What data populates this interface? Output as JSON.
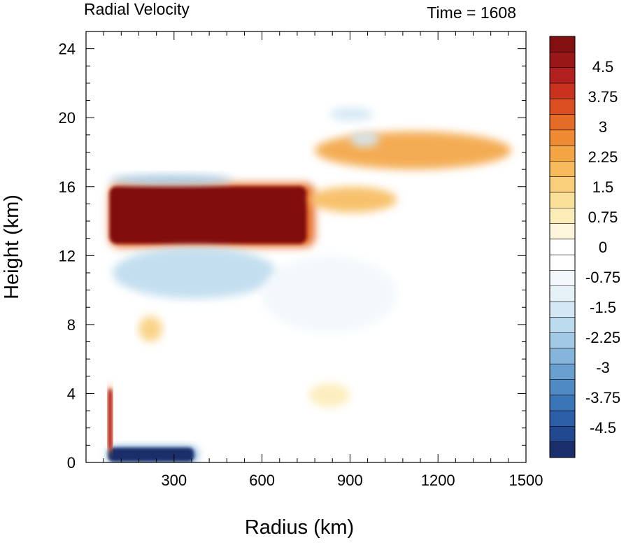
{
  "chart_data": {
    "type": "heatmap",
    "title_left": "Radial Velocity",
    "title_right": "Time = 1608",
    "xlabel": "Radius (km)",
    "ylabel": "Height (km)",
    "xlim": [
      0,
      1500
    ],
    "ylim": [
      0,
      25
    ],
    "xticks": [
      300,
      600,
      900,
      1200,
      1500
    ],
    "yticks": [
      0,
      4,
      8,
      12,
      16,
      20,
      24
    ],
    "colorbar": {
      "range": [
        -5.25,
        5.25
      ],
      "step": 0.25,
      "labels": [
        4.5,
        3.75,
        3,
        2.25,
        1.5,
        0.75,
        0,
        -0.75,
        -1.5,
        -2.25,
        -3,
        -3.75,
        -4.5
      ],
      "label_text": [
        "4.5",
        "3.75",
        "3",
        "2.25",
        "1.5",
        "0.75",
        "0",
        "-0.75",
        "-1.5",
        "-2.25",
        "-3",
        "-3.75",
        "-4.5"
      ],
      "colors_low_to_high": [
        "#1a2f6b",
        "#22488f",
        "#2c5fa8",
        "#3a75b8",
        "#4f8ac4",
        "#69a0d0",
        "#85b5db",
        "#a2c9e5",
        "#bddbee",
        "#d3e7f4",
        "#e6f1f8",
        "#f2f8fc",
        "#ffffff",
        "#ffffff",
        "#fdf6dc",
        "#fcecb8",
        "#fbe099",
        "#f9cf7b",
        "#f7bb5d",
        "#f3a443",
        "#ee8a31",
        "#e56c27",
        "#da4e22",
        "#c9321f",
        "#b21f1f",
        "#9a1717",
        "#821010"
      ]
    },
    "features": [
      {
        "kind": "outflow-jet",
        "r": [
          80,
          780
        ],
        "z": [
          12.5,
          16.2
        ],
        "value": 5.25
      },
      {
        "kind": "upper-inflow",
        "r": [
          80,
          500
        ],
        "z": [
          16.1,
          16.7
        ],
        "value": -2.5
      },
      {
        "kind": "midlevel-inflow",
        "r": [
          90,
          650
        ],
        "z": [
          9.5,
          12.5
        ],
        "value": -2.2
      },
      {
        "kind": "boundary-layer-inflow",
        "r": [
          75,
          380
        ],
        "z": [
          0,
          0.9
        ],
        "value": -5.25
      },
      {
        "kind": "eyewall-outflow",
        "r": [
          75,
          90
        ],
        "z": [
          0.5,
          4.5
        ],
        "value": 4.5
      },
      {
        "kind": "upper-outflow-band",
        "r": [
          780,
          1450
        ],
        "z": [
          17,
          19.2
        ],
        "value": 2.5
      },
      {
        "kind": "upper-outflow-band",
        "r": [
          760,
          1060
        ],
        "z": [
          14.5,
          16
        ],
        "value": 2.0
      },
      {
        "kind": "upper-inflow-patch",
        "r": [
          830,
          980
        ],
        "z": [
          19.8,
          20.6
        ],
        "value": -1.5
      },
      {
        "kind": "upper-inflow-patch",
        "r": [
          900,
          1000
        ],
        "z": [
          18.3,
          19.2
        ],
        "value": -1.5
      },
      {
        "kind": "midlevel-weak-inflow",
        "r": [
          600,
          1060
        ],
        "z": [
          7.5,
          12
        ],
        "value": -0.8
      },
      {
        "kind": "low-level-outflow",
        "r": [
          760,
          900
        ],
        "z": [
          3.2,
          4.6
        ],
        "value": 0.9
      },
      {
        "kind": "midlevel-outflow",
        "r": [
          180,
          260
        ],
        "z": [
          7,
          8.5
        ],
        "value": 1.5
      }
    ]
  }
}
